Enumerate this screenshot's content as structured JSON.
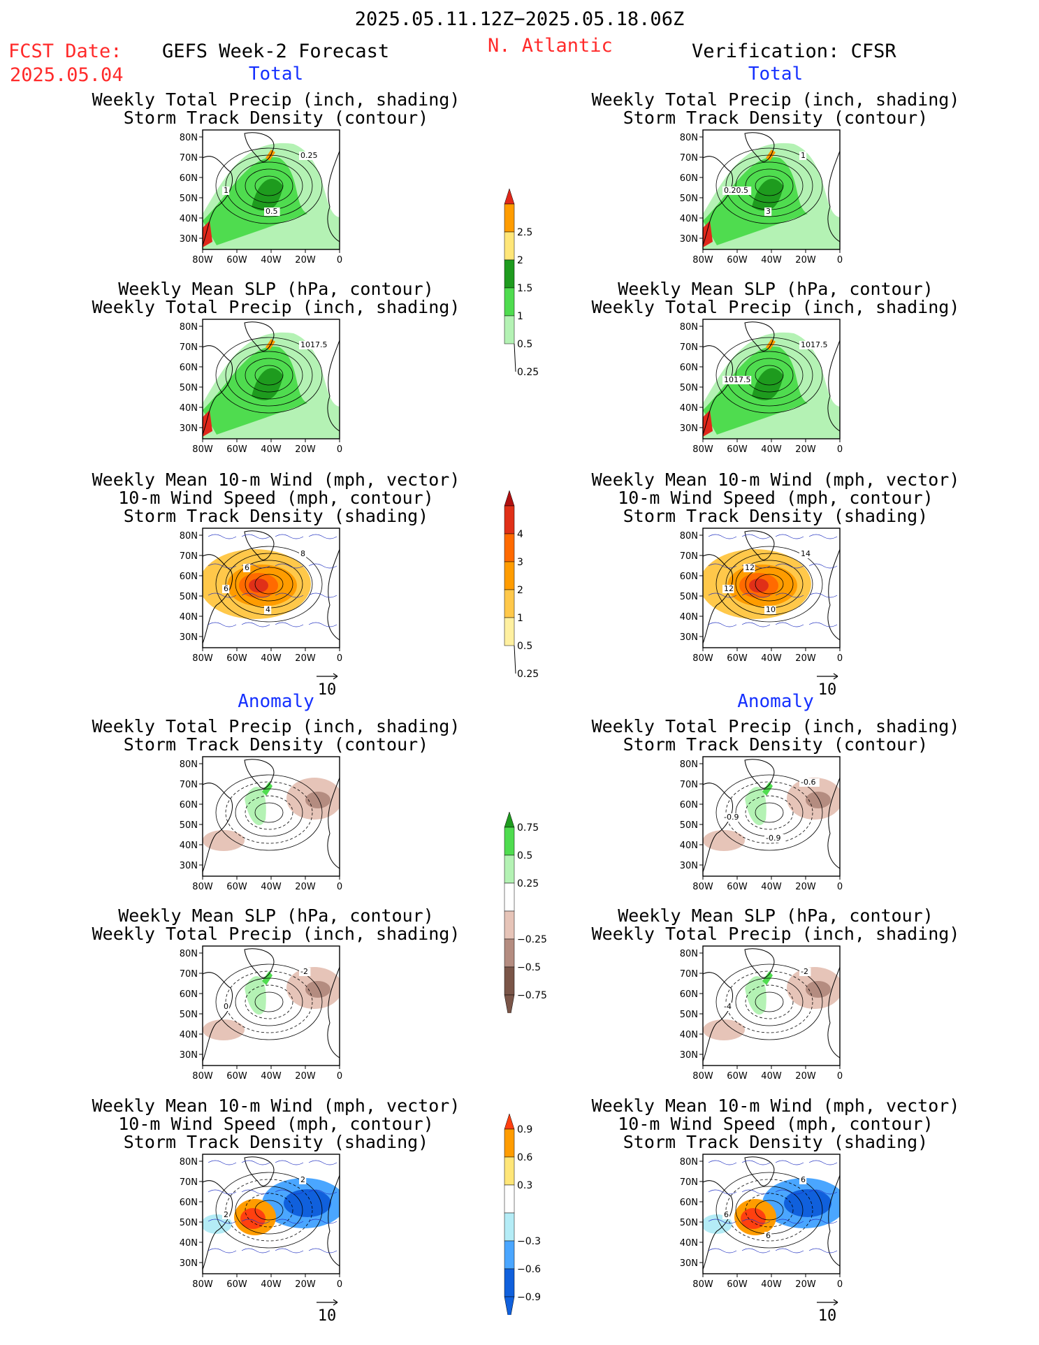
{
  "header": {
    "period": "2025.05.11.12Z−2025.05.18.06Z",
    "fcst_label": "FCST Date:",
    "fcst_date": "2025.05.04",
    "model": "GEFS Week-2 Forecast",
    "region": "N. Atlantic",
    "verification": "Verification: CFSR"
  },
  "sections": {
    "total_left": "Total",
    "total_right": "Total",
    "anomaly_left": "Anomaly",
    "anomaly_right": "Anomaly"
  },
  "titles": {
    "precip_track": [
      "Weekly Total Precip (inch, shading)",
      "Storm Track Density (contour)"
    ],
    "slp_precip": [
      "Weekly Mean SLP (hPa, contour)",
      "Weekly Total Precip (inch, shading)"
    ],
    "wind_track": [
      "Weekly Mean 10-m Wind (mph, vector)",
      "10-m Wind Speed (mph, contour)",
      "Storm Track Density (shading)"
    ]
  },
  "axes": {
    "lat_ticks": [
      "80N",
      "70N",
      "60N",
      "50N",
      "40N",
      "30N"
    ],
    "lon_ticks": [
      "80W",
      "60W",
      "40W",
      "20W",
      "0"
    ]
  },
  "vector_ref": "10",
  "colorbars": [
    {
      "id": "precip_total",
      "labels": [
        "2.5",
        "2",
        "1.5",
        "1",
        "0.5",
        "0.25"
      ],
      "colors": [
        "#e0281a",
        "#ff9c00",
        "#ffe678",
        "#1e9b1e",
        "#4fdc4f",
        "#b4f2b4"
      ]
    },
    {
      "id": "track_total",
      "labels": [
        "4",
        "3",
        "2",
        "1",
        "0.5",
        "0.25"
      ],
      "colors": [
        "#b01010",
        "#e03018",
        "#ff6a00",
        "#ff9c00",
        "#ffc84a",
        "#fff0a0"
      ]
    },
    {
      "id": "precip_anom",
      "labels": [
        "0.75",
        "0.5",
        "0.25",
        "−0.25",
        "−0.5",
        "−0.75"
      ],
      "colors": [
        "#1e9b1e",
        "#4fdc4f",
        "#b4f2b4",
        "#ffffff",
        "#e6c4b8",
        "#b48c80",
        "#7a5548"
      ]
    },
    {
      "id": "track_anom",
      "labels": [
        "0.9",
        "0.6",
        "0.3",
        "−0.3",
        "−0.6",
        "−0.9"
      ],
      "colors": [
        "#ff4010",
        "#ff9c00",
        "#ffe678",
        "#ffffff",
        "#b4ecf6",
        "#4aa6ff",
        "#1060dc"
      ]
    }
  ],
  "panels": [
    {
      "id": "p1",
      "type": "precip_track",
      "labels": [
        "0.25",
        "1",
        "0.5"
      ]
    },
    {
      "id": "p2",
      "type": "precip_track",
      "labels": [
        "1",
        "0.20.5",
        "3"
      ]
    },
    {
      "id": "p3",
      "type": "slp_precip",
      "labels": [
        "1017.5"
      ]
    },
    {
      "id": "p4",
      "type": "slp_precip",
      "labels": [
        "1017.5",
        "1017.5"
      ]
    },
    {
      "id": "p5",
      "type": "wind_track",
      "labels": [
        "8",
        "6",
        "4",
        "6"
      ]
    },
    {
      "id": "p6",
      "type": "wind_track",
      "labels": [
        "14",
        "12",
        "10",
        "12"
      ]
    },
    {
      "id": "p7",
      "type": "precip_track_anom",
      "labels": []
    },
    {
      "id": "p8",
      "type": "precip_track_anom",
      "labels": [
        "-0.6",
        "-0.9",
        "-0.9"
      ]
    },
    {
      "id": "p9",
      "type": "slp_precip_anom",
      "labels": [
        "-2",
        "0"
      ]
    },
    {
      "id": "p10",
      "type": "slp_precip_anom",
      "labels": [
        "-2",
        "-4"
      ]
    },
    {
      "id": "p11",
      "type": "wind_track_anom",
      "labels": [
        "2",
        "2"
      ]
    },
    {
      "id": "p12",
      "type": "wind_track_anom",
      "labels": [
        "6",
        "6",
        "6"
      ]
    }
  ]
}
